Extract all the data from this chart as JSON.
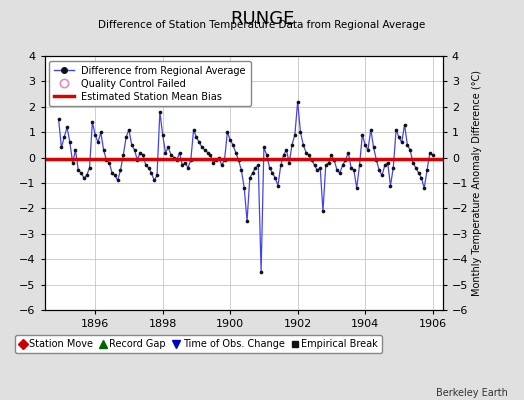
{
  "title": "RUNGE",
  "subtitle": "Difference of Station Temperature Data from Regional Average",
  "ylabel_right": "Monthly Temperature Anomaly Difference (°C)",
  "watermark": "Berkeley Earth",
  "bias_value": -0.05,
  "ylim": [
    -6,
    4
  ],
  "xlim": [
    1894.5,
    1906.3
  ],
  "xticks": [
    1896,
    1898,
    1900,
    1902,
    1904,
    1906
  ],
  "yticks": [
    -6,
    -5,
    -4,
    -3,
    -2,
    -1,
    0,
    1,
    2,
    3,
    4
  ],
  "line_color": "#4444ee",
  "bias_color": "#dd0000",
  "dot_color": "#111111",
  "bg_color": "#e0e0e0",
  "plot_bg": "#ffffff",
  "grid_color": "#bbbbbb",
  "legend_edge": "#888888",
  "time_series_x": [
    1894.917,
    1895.0,
    1895.083,
    1895.167,
    1895.25,
    1895.333,
    1895.417,
    1895.5,
    1895.583,
    1895.667,
    1895.75,
    1895.833,
    1895.917,
    1896.0,
    1896.083,
    1896.167,
    1896.25,
    1896.333,
    1896.417,
    1896.5,
    1896.583,
    1896.667,
    1896.75,
    1896.833,
    1896.917,
    1897.0,
    1897.083,
    1897.167,
    1897.25,
    1897.333,
    1897.417,
    1897.5,
    1897.583,
    1897.667,
    1897.75,
    1897.833,
    1897.917,
    1898.0,
    1898.083,
    1898.167,
    1898.25,
    1898.333,
    1898.417,
    1898.5,
    1898.583,
    1898.667,
    1898.75,
    1898.833,
    1898.917,
    1899.0,
    1899.083,
    1899.167,
    1899.25,
    1899.333,
    1899.417,
    1899.5,
    1899.583,
    1899.667,
    1899.75,
    1899.833,
    1899.917,
    1900.0,
    1900.083,
    1900.167,
    1900.25,
    1900.333,
    1900.417,
    1900.5,
    1900.583,
    1900.667,
    1900.75,
    1900.833,
    1900.917,
    1901.0,
    1901.083,
    1901.167,
    1901.25,
    1901.333,
    1901.417,
    1901.5,
    1901.583,
    1901.667,
    1901.75,
    1901.833,
    1901.917,
    1902.0,
    1902.083,
    1902.167,
    1902.25,
    1902.333,
    1902.417,
    1902.5,
    1902.583,
    1902.667,
    1902.75,
    1902.833,
    1902.917,
    1903.0,
    1903.083,
    1903.167,
    1903.25,
    1903.333,
    1903.417,
    1903.5,
    1903.583,
    1903.667,
    1903.75,
    1903.833,
    1903.917,
    1904.0,
    1904.083,
    1904.167,
    1904.25,
    1904.333,
    1904.417,
    1904.5,
    1904.583,
    1904.667,
    1904.75,
    1904.833,
    1904.917,
    1905.0,
    1905.083,
    1905.167,
    1905.25,
    1905.333,
    1905.417,
    1905.5,
    1905.583,
    1905.667,
    1905.75,
    1905.833,
    1905.917,
    1906.0
  ],
  "time_series_y": [
    1.5,
    0.4,
    0.8,
    1.2,
    0.6,
    -0.2,
    0.3,
    -0.5,
    -0.6,
    -0.8,
    -0.7,
    -0.4,
    1.4,
    0.9,
    0.6,
    1.0,
    0.3,
    -0.1,
    -0.2,
    -0.6,
    -0.7,
    -0.9,
    -0.5,
    0.1,
    0.8,
    1.1,
    0.5,
    0.3,
    -0.1,
    0.2,
    0.1,
    -0.3,
    -0.4,
    -0.6,
    -0.9,
    -0.7,
    1.8,
    0.9,
    0.2,
    0.4,
    0.1,
    0.0,
    -0.1,
    0.2,
    -0.3,
    -0.2,
    -0.4,
    -0.1,
    1.1,
    0.8,
    0.6,
    0.4,
    0.3,
    0.2,
    0.1,
    -0.2,
    -0.1,
    0.0,
    -0.3,
    -0.1,
    1.0,
    0.7,
    0.5,
    0.2,
    -0.1,
    -0.5,
    -1.2,
    -2.5,
    -0.8,
    -0.6,
    -0.4,
    -0.3,
    -4.5,
    0.4,
    0.1,
    -0.4,
    -0.6,
    -0.8,
    -1.1,
    -0.3,
    0.1,
    0.3,
    -0.2,
    0.5,
    0.9,
    2.2,
    1.0,
    0.5,
    0.2,
    0.1,
    -0.1,
    -0.3,
    -0.5,
    -0.4,
    -2.1,
    -0.3,
    -0.2,
    0.1,
    -0.1,
    -0.5,
    -0.6,
    -0.3,
    -0.1,
    0.2,
    -0.4,
    -0.5,
    -1.2,
    -0.3,
    0.9,
    0.5,
    0.3,
    1.1,
    0.4,
    -0.1,
    -0.5,
    -0.7,
    -0.3,
    -0.2,
    -1.1,
    -0.4,
    1.1,
    0.8,
    0.6,
    1.3,
    0.5,
    0.3,
    -0.2,
    -0.4,
    -0.6,
    -0.8,
    -1.2,
    -0.5,
    0.2,
    0.1
  ]
}
